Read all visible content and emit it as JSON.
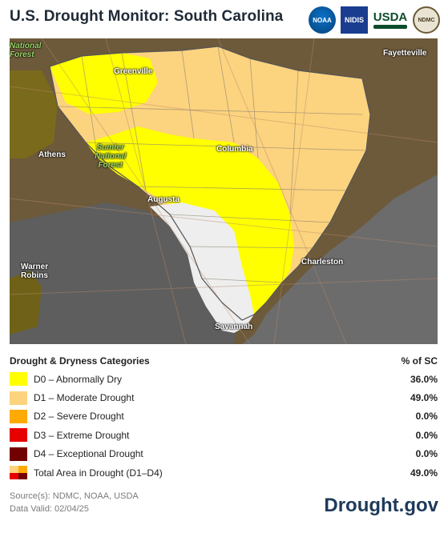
{
  "header": {
    "title": "U.S. Drought Monitor: South Carolina",
    "logos": [
      {
        "name": "noaa-logo",
        "text": "NOAA"
      },
      {
        "name": "nidis-logo",
        "text": "NIDIS"
      },
      {
        "name": "usda-logo",
        "text": "USDA"
      },
      {
        "name": "ndmc-logo",
        "text": "NDMC"
      }
    ]
  },
  "map": {
    "labels": {
      "national_forest": "National\nForest",
      "fayetteville": "Fayetteville",
      "greenville": "Greenville",
      "athens": "Athens",
      "sumter_forest": "Sumter\nNational\nForest",
      "columbia": "Columbia",
      "augusta": "Augusta",
      "charleston": "Charleston",
      "warner_robins": "Warner\nRobins",
      "savannah": "Savannah"
    },
    "colors": {
      "land": "#6d5a3b",
      "water": "#6c6c6c",
      "none": "#eeeeee",
      "d0": "#ffff00",
      "d1": "#fcd37f"
    }
  },
  "legend": {
    "heading": "Drought & Dryness Categories",
    "pct_heading": "% of SC",
    "categories": [
      {
        "label": "D0 – Abnormally Dry",
        "value": "36.0%",
        "color": "#ffff00"
      },
      {
        "label": "D1 – Moderate Drought",
        "value": "49.0%",
        "color": "#fcd37f"
      },
      {
        "label": "D2 – Severe Drought",
        "value": "0.0%",
        "color": "#ffaa00"
      },
      {
        "label": "D3 – Extreme Drought",
        "value": "0.0%",
        "color": "#e60000"
      },
      {
        "label": "D4 – Exceptional Drought",
        "value": "0.0%",
        "color": "#730000"
      }
    ],
    "total": {
      "label": "Total Area in Drought (D1–D4)",
      "value": "49.0%"
    }
  },
  "footer": {
    "source": "Source(s): NDMC, NOAA, USDA",
    "valid": "Data Valid: 02/04/25",
    "brand": "Drought.gov"
  }
}
